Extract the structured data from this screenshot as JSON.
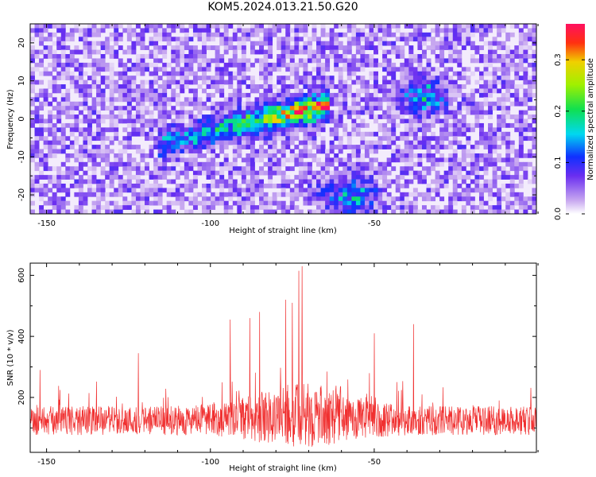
{
  "title": "KOM5.2024.013.21.50.G20",
  "chart_data": [
    {
      "type": "heatmap",
      "xlabel": "Height of straight line (km)",
      "ylabel": "Frequency (Hz)",
      "xlim": [
        -155,
        -0.5
      ],
      "ylim": [
        -25,
        25
      ],
      "xticks": [
        -150,
        -100,
        -50
      ],
      "yticks": [
        -20,
        -10,
        0,
        10,
        20
      ],
      "colorbar": {
        "label": "Normalized spectral amplitude",
        "range": [
          0,
          0.37
        ],
        "ticks": [
          "0.0",
          "0.1",
          "0.2",
          "0.3"
        ]
      },
      "features": [
        {
          "name": "main-ridge",
          "x_start": -112,
          "x_end": -68,
          "y_start": -6,
          "y_end": 3,
          "peak": 0.33
        },
        {
          "name": "blob-upper-right",
          "x": -35,
          "y": 6,
          "peak": 0.12
        },
        {
          "name": "blob-lower",
          "x": -58,
          "y": -20,
          "peak": 0.13
        }
      ],
      "grid": false,
      "legend": "colorbar-right"
    },
    {
      "type": "line",
      "xlabel": "Height of straight line (km)",
      "ylabel": "SNR (10 * v/v)",
      "xlim": [
        -155,
        -0.5
      ],
      "ylim": [
        20,
        640
      ],
      "xticks": [
        -150,
        -100,
        -50
      ],
      "yticks": [
        200,
        400,
        600
      ],
      "series": [
        {
          "color": "#f03030",
          "points": 1550,
          "baseline": 110,
          "spread": 95,
          "peak_x": -72,
          "peak_y": 630,
          "notable_peaks": [
            {
              "x": -72,
              "y": 630
            },
            {
              "x": -73,
              "y": 615
            },
            {
              "x": -77,
              "y": 520
            },
            {
              "x": -75,
              "y": 510
            },
            {
              "x": -85,
              "y": 480
            },
            {
              "x": -88,
              "y": 460
            },
            {
              "x": -94,
              "y": 455
            },
            {
              "x": -122,
              "y": 345
            },
            {
              "x": -38,
              "y": 440
            },
            {
              "x": -50,
              "y": 410
            },
            {
              "x": -152,
              "y": 290
            }
          ]
        }
      ],
      "grid": false
    }
  ]
}
